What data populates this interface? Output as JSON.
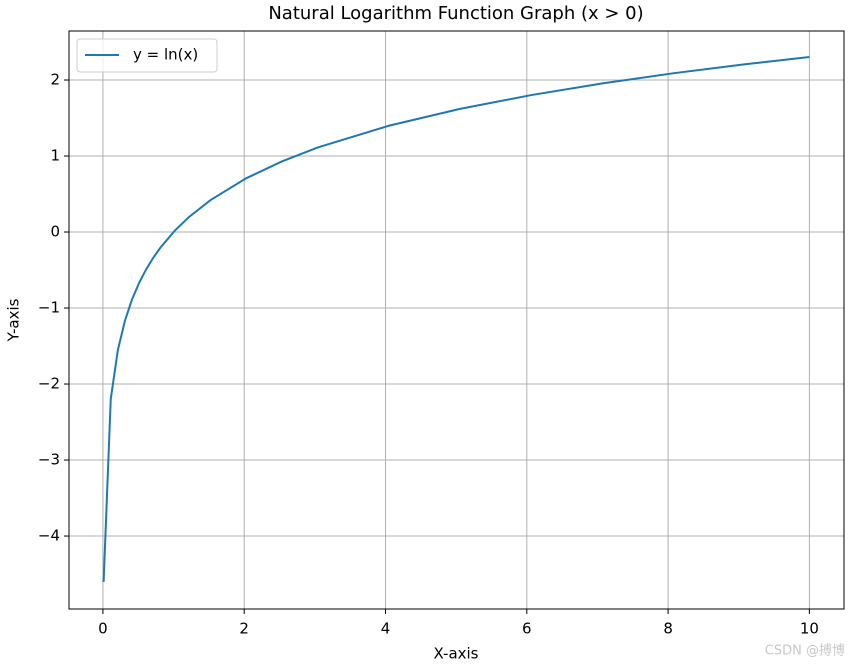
{
  "chart_data": {
    "type": "line",
    "title": "Natural Logarithm Function Graph (x > 0)",
    "x_label": "X-axis",
    "y_label": "Y-axis",
    "x": [
      0.01,
      0.111,
      0.212,
      0.313,
      0.414,
      0.515,
      0.615,
      0.716,
      0.817,
      1.019,
      1.221,
      1.524,
      2.028,
      2.533,
      3.037,
      4.046,
      5.055,
      6.064,
      7.073,
      8.082,
      9.091,
      10.0
    ],
    "series": [
      {
        "name": "y = ln(x)",
        "color": "#1f77b4",
        "values": [
          -4.605,
          -2.198,
          -1.551,
          -1.162,
          -0.882,
          -0.664,
          -0.486,
          -0.334,
          -0.202,
          0.019,
          0.2,
          0.421,
          0.707,
          0.929,
          1.111,
          1.398,
          1.62,
          1.802,
          1.956,
          2.09,
          2.207,
          2.303
        ]
      }
    ],
    "xlim": [
      -0.48,
      10.49
    ],
    "ylim": [
      -4.96,
      2.645
    ],
    "xticks": [
      0,
      2,
      4,
      6,
      8,
      10
    ],
    "yticks": [
      {
        "value": -4,
        "label": "−4"
      },
      {
        "value": -3,
        "label": "−3"
      },
      {
        "value": -2,
        "label": "−2"
      },
      {
        "value": -1,
        "label": "−1"
      },
      0,
      1,
      2
    ],
    "grid": true,
    "legend": "upper-left",
    "watermark": "CSDN @搏博"
  }
}
